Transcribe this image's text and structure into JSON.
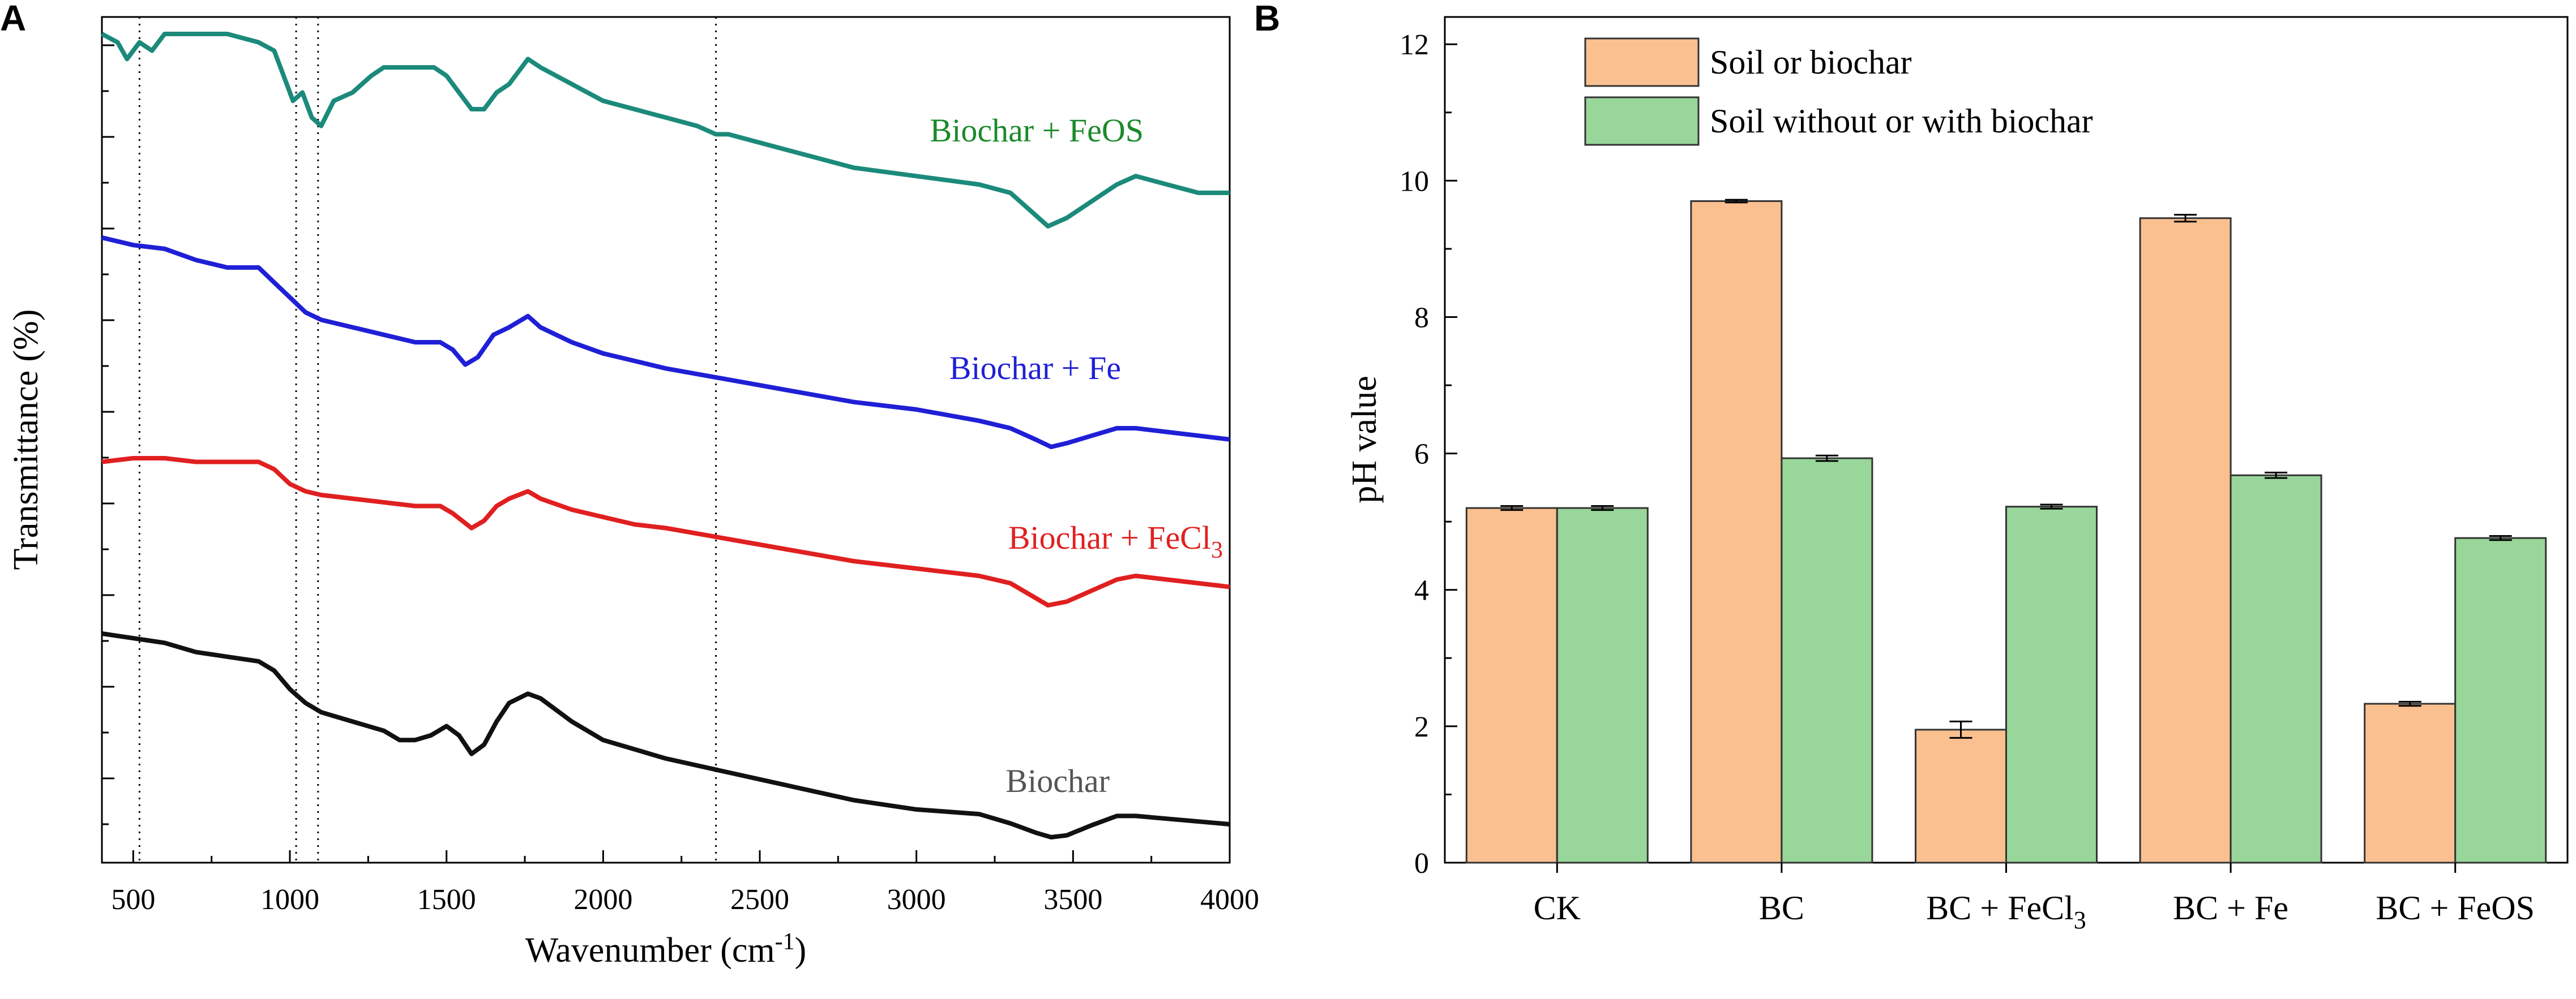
{
  "chart_data": [
    {
      "panel": "A",
      "type": "line",
      "xlabel": "Wavenumber",
      "xlabel_unit": "(cm",
      "xlabel_unit_sup": "-1",
      "xlabel_unit_close": ")",
      "ylabel": "Transmittance (%)",
      "xlim": [
        400,
        4000
      ],
      "xticks": [
        500,
        1000,
        1500,
        2000,
        2500,
        3000,
        3500,
        4000
      ],
      "reference_lines_x": [
        520,
        1020,
        1090,
        2360
      ],
      "series": [
        {
          "name": "Biochar + FeOS",
          "name_main": "Biochar + FeOS",
          "name_sub": "",
          "name_tail": "",
          "color": "#1b8a7a",
          "label_color": "#1a8a2a",
          "x": [
            400,
            450,
            480,
            520,
            560,
            600,
            700,
            800,
            900,
            950,
            990,
            1010,
            1040,
            1070,
            1100,
            1140,
            1200,
            1260,
            1300,
            1400,
            1460,
            1500,
            1540,
            1580,
            1620,
            1660,
            1700,
            1760,
            1800,
            1900,
            2000,
            2100,
            2200,
            2300,
            2360,
            2400,
            2600,
            2800,
            3000,
            3100,
            3200,
            3300,
            3360,
            3420,
            3480,
            3560,
            3640,
            3700,
            3800,
            3900,
            4000
          ],
          "y": [
            96,
            95,
            93,
            95,
            94,
            96,
            96,
            96,
            95,
            94,
            90,
            88,
            89,
            86,
            85,
            88,
            89,
            91,
            92,
            92,
            92,
            91,
            89,
            87,
            87,
            89,
            90,
            93,
            92,
            90,
            88,
            87,
            86,
            85,
            84,
            84,
            82,
            80,
            79,
            78.5,
            78,
            77,
            75,
            73,
            74,
            76,
            78,
            79,
            78,
            77,
            77
          ]
        },
        {
          "name": "Biochar + Fe",
          "name_main": "Biochar + Fe",
          "name_sub": "",
          "name_tail": "",
          "color": "#1f1fd6",
          "label_color": "#1f1fd6",
          "x": [
            400,
            500,
            600,
            700,
            800,
            900,
            950,
            1000,
            1050,
            1100,
            1200,
            1300,
            1400,
            1480,
            1520,
            1560,
            1600,
            1650,
            1700,
            1760,
            1800,
            1900,
            2000,
            2100,
            2200,
            2400,
            2600,
            2800,
            3000,
            3200,
            3300,
            3380,
            3430,
            3480,
            3560,
            3640,
            3700,
            3800,
            3900,
            4000
          ],
          "y": [
            70,
            69,
            68.5,
            67,
            66,
            66,
            64,
            62,
            60,
            59,
            58,
            57,
            56,
            56,
            55,
            53,
            54,
            57,
            58,
            59.5,
            58,
            56,
            54.5,
            53.5,
            52.5,
            51,
            49.5,
            48,
            47,
            45.5,
            44.5,
            43,
            42,
            42.5,
            43.5,
            44.5,
            44.5,
            44,
            43.5,
            43
          ]
        },
        {
          "name": "Biochar + FeCl3",
          "name_main": "Biochar + FeCl",
          "name_sub": "3",
          "name_tail": "",
          "color": "#e02020",
          "label_color": "#e02020",
          "x": [
            400,
            500,
            600,
            700,
            800,
            900,
            950,
            1000,
            1050,
            1100,
            1200,
            1300,
            1400,
            1480,
            1520,
            1580,
            1620,
            1660,
            1700,
            1760,
            1800,
            1900,
            2000,
            2100,
            2200,
            2400,
            2600,
            2800,
            2900,
            3000,
            3200,
            3300,
            3360,
            3420,
            3480,
            3560,
            3640,
            3700,
            3800,
            3900,
            4000
          ],
          "y": [
            45,
            45.5,
            45.5,
            45,
            45,
            45,
            44,
            42,
            41,
            40.5,
            40,
            39.5,
            39,
            39,
            38,
            36,
            37,
            39,
            40,
            41,
            40,
            38.5,
            37.5,
            36.5,
            36,
            34.5,
            33,
            31.5,
            31,
            30.5,
            29.5,
            28.5,
            27,
            25.5,
            26,
            27.5,
            29,
            29.5,
            29,
            28.5,
            28
          ]
        },
        {
          "name": "Biochar",
          "name_main": "Biochar",
          "name_sub": "",
          "name_tail": "",
          "color": "#111111",
          "label_color": "#555555",
          "x": [
            400,
            500,
            600,
            700,
            800,
            900,
            950,
            1000,
            1050,
            1100,
            1200,
            1300,
            1350,
            1400,
            1450,
            1500,
            1540,
            1580,
            1620,
            1660,
            1700,
            1760,
            1800,
            1900,
            2000,
            2200,
            2400,
            2600,
            2800,
            3000,
            3200,
            3300,
            3380,
            3430,
            3480,
            3560,
            3640,
            3700,
            3800,
            3900,
            4000
          ],
          "y": [
            23,
            22.5,
            22,
            21,
            20.5,
            20,
            19,
            17,
            15.5,
            14.5,
            13.5,
            12.5,
            11.5,
            11.5,
            12,
            13,
            12,
            10,
            11,
            13.5,
            15.5,
            16.5,
            16,
            13.5,
            11.5,
            9.5,
            8,
            6.5,
            5,
            4,
            3.5,
            2.5,
            1.5,
            1,
            1.2,
            2.3,
            3.3,
            3.3,
            3,
            2.7,
            2.4
          ]
        }
      ]
    },
    {
      "panel": "B",
      "type": "bar",
      "categories": [
        "CK",
        "BC",
        "BC + FeCl3",
        "BC + Fe",
        "BC + FeOS"
      ],
      "category_labels": [
        {
          "main": "CK",
          "sub": "",
          "tail": ""
        },
        {
          "main": "BC",
          "sub": "",
          "tail": ""
        },
        {
          "main": "BC + FeCl",
          "sub": "3",
          "tail": ""
        },
        {
          "main": "BC + Fe",
          "sub": "",
          "tail": ""
        },
        {
          "main": "BC + FeOS",
          "sub": "",
          "tail": ""
        }
      ],
      "ylabel": "pH value",
      "ylim": [
        0,
        12.4
      ],
      "yticks": [
        0,
        2,
        4,
        6,
        8,
        10,
        12
      ],
      "series": [
        {
          "name": "Soil or biochar",
          "color": "#fac090",
          "values": [
            5.2,
            9.7,
            1.95,
            9.45,
            2.33
          ],
          "errors": [
            0.03,
            0.02,
            0.12,
            0.05,
            0.03
          ]
        },
        {
          "name": "Soil without or with biochar",
          "color": "#99d69a",
          "values": [
            5.2,
            5.93,
            5.22,
            5.68,
            4.76
          ],
          "errors": [
            0.03,
            0.04,
            0.03,
            0.04,
            0.03
          ]
        }
      ]
    }
  ]
}
